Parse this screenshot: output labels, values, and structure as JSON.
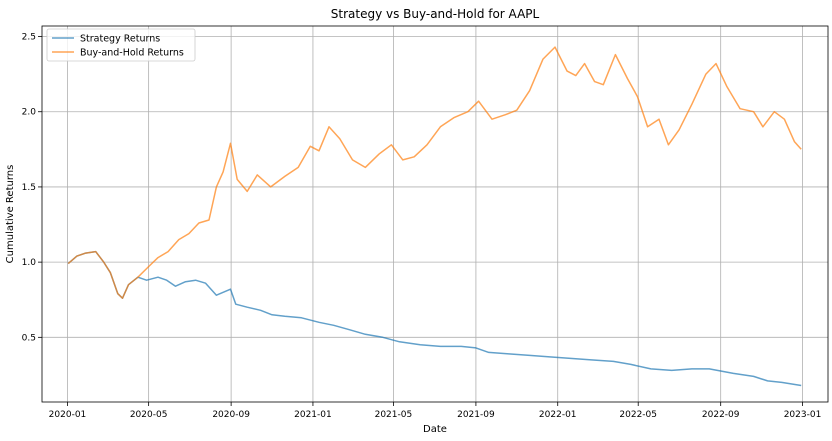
{
  "chart_data": {
    "type": "line",
    "title": "Strategy vs Buy-and-Hold for AAPL",
    "xlabel": "Date",
    "ylabel": "Cumulative Returns",
    "x_ticks": [
      "2020-01",
      "2020-05",
      "2020-09",
      "2021-01",
      "2021-05",
      "2021-09",
      "2022-01",
      "2022-05",
      "2022-09",
      "2023-01"
    ],
    "y_ticks": [
      "0.5",
      "1.0",
      "1.5",
      "2.0",
      "2.5"
    ],
    "ylim": [
      0.07,
      2.57
    ],
    "xlim": [
      "2019-11-24",
      "2023-02-08"
    ],
    "grid": true,
    "legend_position": "top-left",
    "series": [
      {
        "name": "Strategy Returns",
        "color": "#1f77b4",
        "points": [
          [
            "2020-01-02",
            0.99
          ],
          [
            "2020-01-15",
            1.04
          ],
          [
            "2020-01-28",
            1.06
          ],
          [
            "2020-02-12",
            1.07
          ],
          [
            "2020-02-24",
            1.0
          ],
          [
            "2020-03-05",
            0.93
          ],
          [
            "2020-03-16",
            0.79
          ],
          [
            "2020-03-23",
            0.76
          ],
          [
            "2020-04-01",
            0.85
          ],
          [
            "2020-04-15",
            0.9
          ],
          [
            "2020-04-28",
            0.88
          ],
          [
            "2020-05-15",
            0.9
          ],
          [
            "2020-05-28",
            0.88
          ],
          [
            "2020-06-10",
            0.84
          ],
          [
            "2020-06-25",
            0.87
          ],
          [
            "2020-07-10",
            0.88
          ],
          [
            "2020-07-25",
            0.86
          ],
          [
            "2020-08-10",
            0.78
          ],
          [
            "2020-08-31",
            0.82
          ],
          [
            "2020-09-08",
            0.72
          ],
          [
            "2020-09-25",
            0.7
          ],
          [
            "2020-10-15",
            0.68
          ],
          [
            "2020-11-01",
            0.65
          ],
          [
            "2020-11-20",
            0.64
          ],
          [
            "2020-12-15",
            0.63
          ],
          [
            "2021-01-10",
            0.6
          ],
          [
            "2021-02-01",
            0.58
          ],
          [
            "2021-02-25",
            0.55
          ],
          [
            "2021-03-20",
            0.52
          ],
          [
            "2021-04-15",
            0.5
          ],
          [
            "2021-05-10",
            0.47
          ],
          [
            "2021-06-10",
            0.45
          ],
          [
            "2021-07-10",
            0.44
          ],
          [
            "2021-08-10",
            0.44
          ],
          [
            "2021-09-01",
            0.43
          ],
          [
            "2021-09-20",
            0.4
          ],
          [
            "2021-10-20",
            0.39
          ],
          [
            "2021-11-20",
            0.38
          ],
          [
            "2021-12-20",
            0.37
          ],
          [
            "2022-01-20",
            0.36
          ],
          [
            "2022-02-20",
            0.35
          ],
          [
            "2022-03-25",
            0.34
          ],
          [
            "2022-04-20",
            0.32
          ],
          [
            "2022-05-20",
            0.29
          ],
          [
            "2022-06-20",
            0.28
          ],
          [
            "2022-07-20",
            0.29
          ],
          [
            "2022-08-15",
            0.29
          ],
          [
            "2022-09-20",
            0.26
          ],
          [
            "2022-10-20",
            0.24
          ],
          [
            "2022-11-10",
            0.21
          ],
          [
            "2022-12-01",
            0.2
          ],
          [
            "2022-12-30",
            0.18
          ]
        ]
      },
      {
        "name": "Buy-and-Hold Returns",
        "color": "#ff7f0e",
        "points": [
          [
            "2020-01-02",
            0.99
          ],
          [
            "2020-01-15",
            1.04
          ],
          [
            "2020-01-28",
            1.06
          ],
          [
            "2020-02-12",
            1.07
          ],
          [
            "2020-02-24",
            1.0
          ],
          [
            "2020-03-05",
            0.93
          ],
          [
            "2020-03-16",
            0.79
          ],
          [
            "2020-03-23",
            0.76
          ],
          [
            "2020-04-01",
            0.85
          ],
          [
            "2020-04-15",
            0.9
          ],
          [
            "2020-05-01",
            0.97
          ],
          [
            "2020-05-15",
            1.03
          ],
          [
            "2020-05-30",
            1.07
          ],
          [
            "2020-06-15",
            1.15
          ],
          [
            "2020-06-30",
            1.19
          ],
          [
            "2020-07-15",
            1.26
          ],
          [
            "2020-07-30",
            1.28
          ],
          [
            "2020-08-10",
            1.5
          ],
          [
            "2020-08-20",
            1.6
          ],
          [
            "2020-08-31",
            1.79
          ],
          [
            "2020-09-10",
            1.55
          ],
          [
            "2020-09-25",
            1.47
          ],
          [
            "2020-10-10",
            1.58
          ],
          [
            "2020-10-30",
            1.5
          ],
          [
            "2020-11-20",
            1.57
          ],
          [
            "2020-12-10",
            1.63
          ],
          [
            "2020-12-28",
            1.77
          ],
          [
            "2021-01-10",
            1.74
          ],
          [
            "2021-01-25",
            1.9
          ],
          [
            "2021-02-10",
            1.82
          ],
          [
            "2021-03-01",
            1.68
          ],
          [
            "2021-03-20",
            1.63
          ],
          [
            "2021-04-10",
            1.72
          ],
          [
            "2021-04-28",
            1.78
          ],
          [
            "2021-05-15",
            1.68
          ],
          [
            "2021-06-01",
            1.7
          ],
          [
            "2021-06-20",
            1.78
          ],
          [
            "2021-07-10",
            1.9
          ],
          [
            "2021-07-30",
            1.96
          ],
          [
            "2021-08-20",
            2.0
          ],
          [
            "2021-09-05",
            2.07
          ],
          [
            "2021-09-25",
            1.95
          ],
          [
            "2021-10-15",
            1.98
          ],
          [
            "2021-11-01",
            2.01
          ],
          [
            "2021-11-20",
            2.14
          ],
          [
            "2021-12-10",
            2.35
          ],
          [
            "2021-12-28",
            2.43
          ],
          [
            "2022-01-15",
            2.27
          ],
          [
            "2022-01-28",
            2.24
          ],
          [
            "2022-02-10",
            2.32
          ],
          [
            "2022-02-25",
            2.2
          ],
          [
            "2022-03-10",
            2.18
          ],
          [
            "2022-03-28",
            2.38
          ],
          [
            "2022-04-15",
            2.22
          ],
          [
            "2022-04-30",
            2.1
          ],
          [
            "2022-05-15",
            1.9
          ],
          [
            "2022-06-01",
            1.95
          ],
          [
            "2022-06-15",
            1.78
          ],
          [
            "2022-07-01",
            1.88
          ],
          [
            "2022-07-20",
            2.05
          ],
          [
            "2022-08-10",
            2.25
          ],
          [
            "2022-08-25",
            2.32
          ],
          [
            "2022-09-10",
            2.17
          ],
          [
            "2022-09-30",
            2.02
          ],
          [
            "2022-10-20",
            2.0
          ],
          [
            "2022-11-03",
            1.9
          ],
          [
            "2022-11-20",
            2.0
          ],
          [
            "2022-12-05",
            1.95
          ],
          [
            "2022-12-20",
            1.8
          ],
          [
            "2022-12-30",
            1.75
          ]
        ]
      }
    ]
  }
}
